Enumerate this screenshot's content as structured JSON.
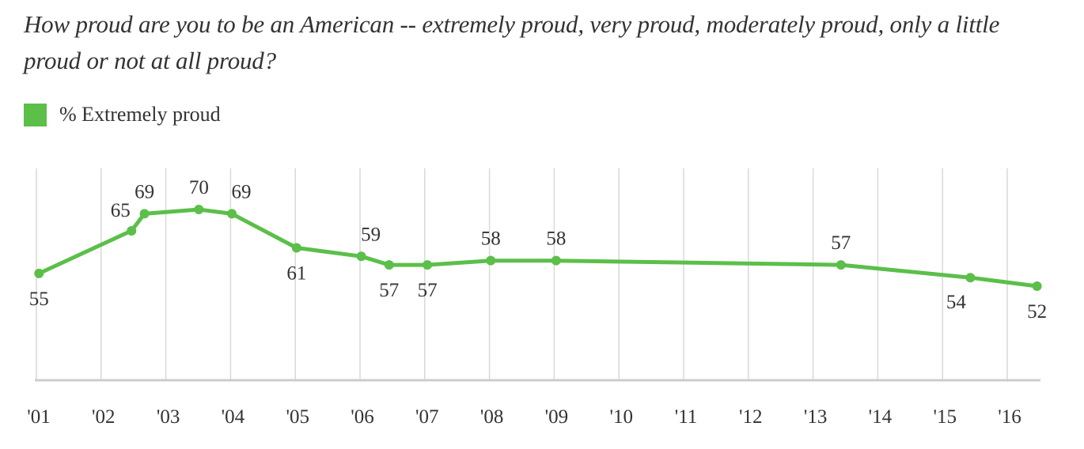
{
  "chart_data": {
    "type": "line",
    "title": "How proud are you to be an American -- extremely proud, very proud, moderately proud, only a little proud or not at all proud?",
    "xlabel": "",
    "ylabel": "",
    "legend": {
      "position": "top-left",
      "entries": [
        "% Extremely proud"
      ]
    },
    "grid": {
      "vertical": true,
      "horizontal": false
    },
    "x_ticks": [
      {
        "value": 2001,
        "label": "'01"
      },
      {
        "value": 2002,
        "label": "'02"
      },
      {
        "value": 2003,
        "label": "'03"
      },
      {
        "value": 2004,
        "label": "'04"
      },
      {
        "value": 2005,
        "label": "'05"
      },
      {
        "value": 2006,
        "label": "'06"
      },
      {
        "value": 2007,
        "label": "'07"
      },
      {
        "value": 2008,
        "label": "'08"
      },
      {
        "value": 2009,
        "label": "'09"
      },
      {
        "value": 2010,
        "label": "'10"
      },
      {
        "value": 2011,
        "label": "'11"
      },
      {
        "value": 2012,
        "label": "'12"
      },
      {
        "value": 2013,
        "label": "'13"
      },
      {
        "value": 2014,
        "label": "'14"
      },
      {
        "value": 2015,
        "label": "'15"
      },
      {
        "value": 2016,
        "label": "'16"
      }
    ],
    "xlim": [
      2001,
      2016.51
    ],
    "ylim": [
      40,
      72
    ],
    "series": [
      {
        "name": "% Extremely proud",
        "color": "#5bbf4a",
        "points": [
          {
            "x": 2001.04,
            "y": 55,
            "label": "55",
            "label_pos": "below"
          },
          {
            "x": 2002.47,
            "y": 65,
            "label": "65",
            "label_pos": "above-left"
          },
          {
            "x": 2002.67,
            "y": 69,
            "label": "69",
            "label_pos": "above"
          },
          {
            "x": 2003.51,
            "y": 70,
            "label": "70",
            "label_pos": "above"
          },
          {
            "x": 2004.02,
            "y": 69,
            "label": "69",
            "label_pos": "above-right"
          },
          {
            "x": 2005.02,
            "y": 61,
            "label": "61",
            "label_pos": "below"
          },
          {
            "x": 2006.02,
            "y": 59,
            "label": "59",
            "label_pos": "above-right"
          },
          {
            "x": 2006.45,
            "y": 57,
            "label": "57",
            "label_pos": "below"
          },
          {
            "x": 2007.04,
            "y": 57,
            "label": "57",
            "label_pos": "below"
          },
          {
            "x": 2008.02,
            "y": 58,
            "label": "58",
            "label_pos": "above"
          },
          {
            "x": 2009.03,
            "y": 58,
            "label": "58",
            "label_pos": "above"
          },
          {
            "x": 2013.43,
            "y": 57,
            "label": "57",
            "label_pos": "above"
          },
          {
            "x": 2015.43,
            "y": 54,
            "label": "54",
            "label_pos": "below-left"
          },
          {
            "x": 2016.46,
            "y": 52,
            "label": "52",
            "label_pos": "below"
          }
        ]
      }
    ]
  },
  "colors": {
    "series": "#5bbf4a",
    "grid": "#d9d9d9",
    "axis": "#cccccc",
    "text": "#333333"
  }
}
